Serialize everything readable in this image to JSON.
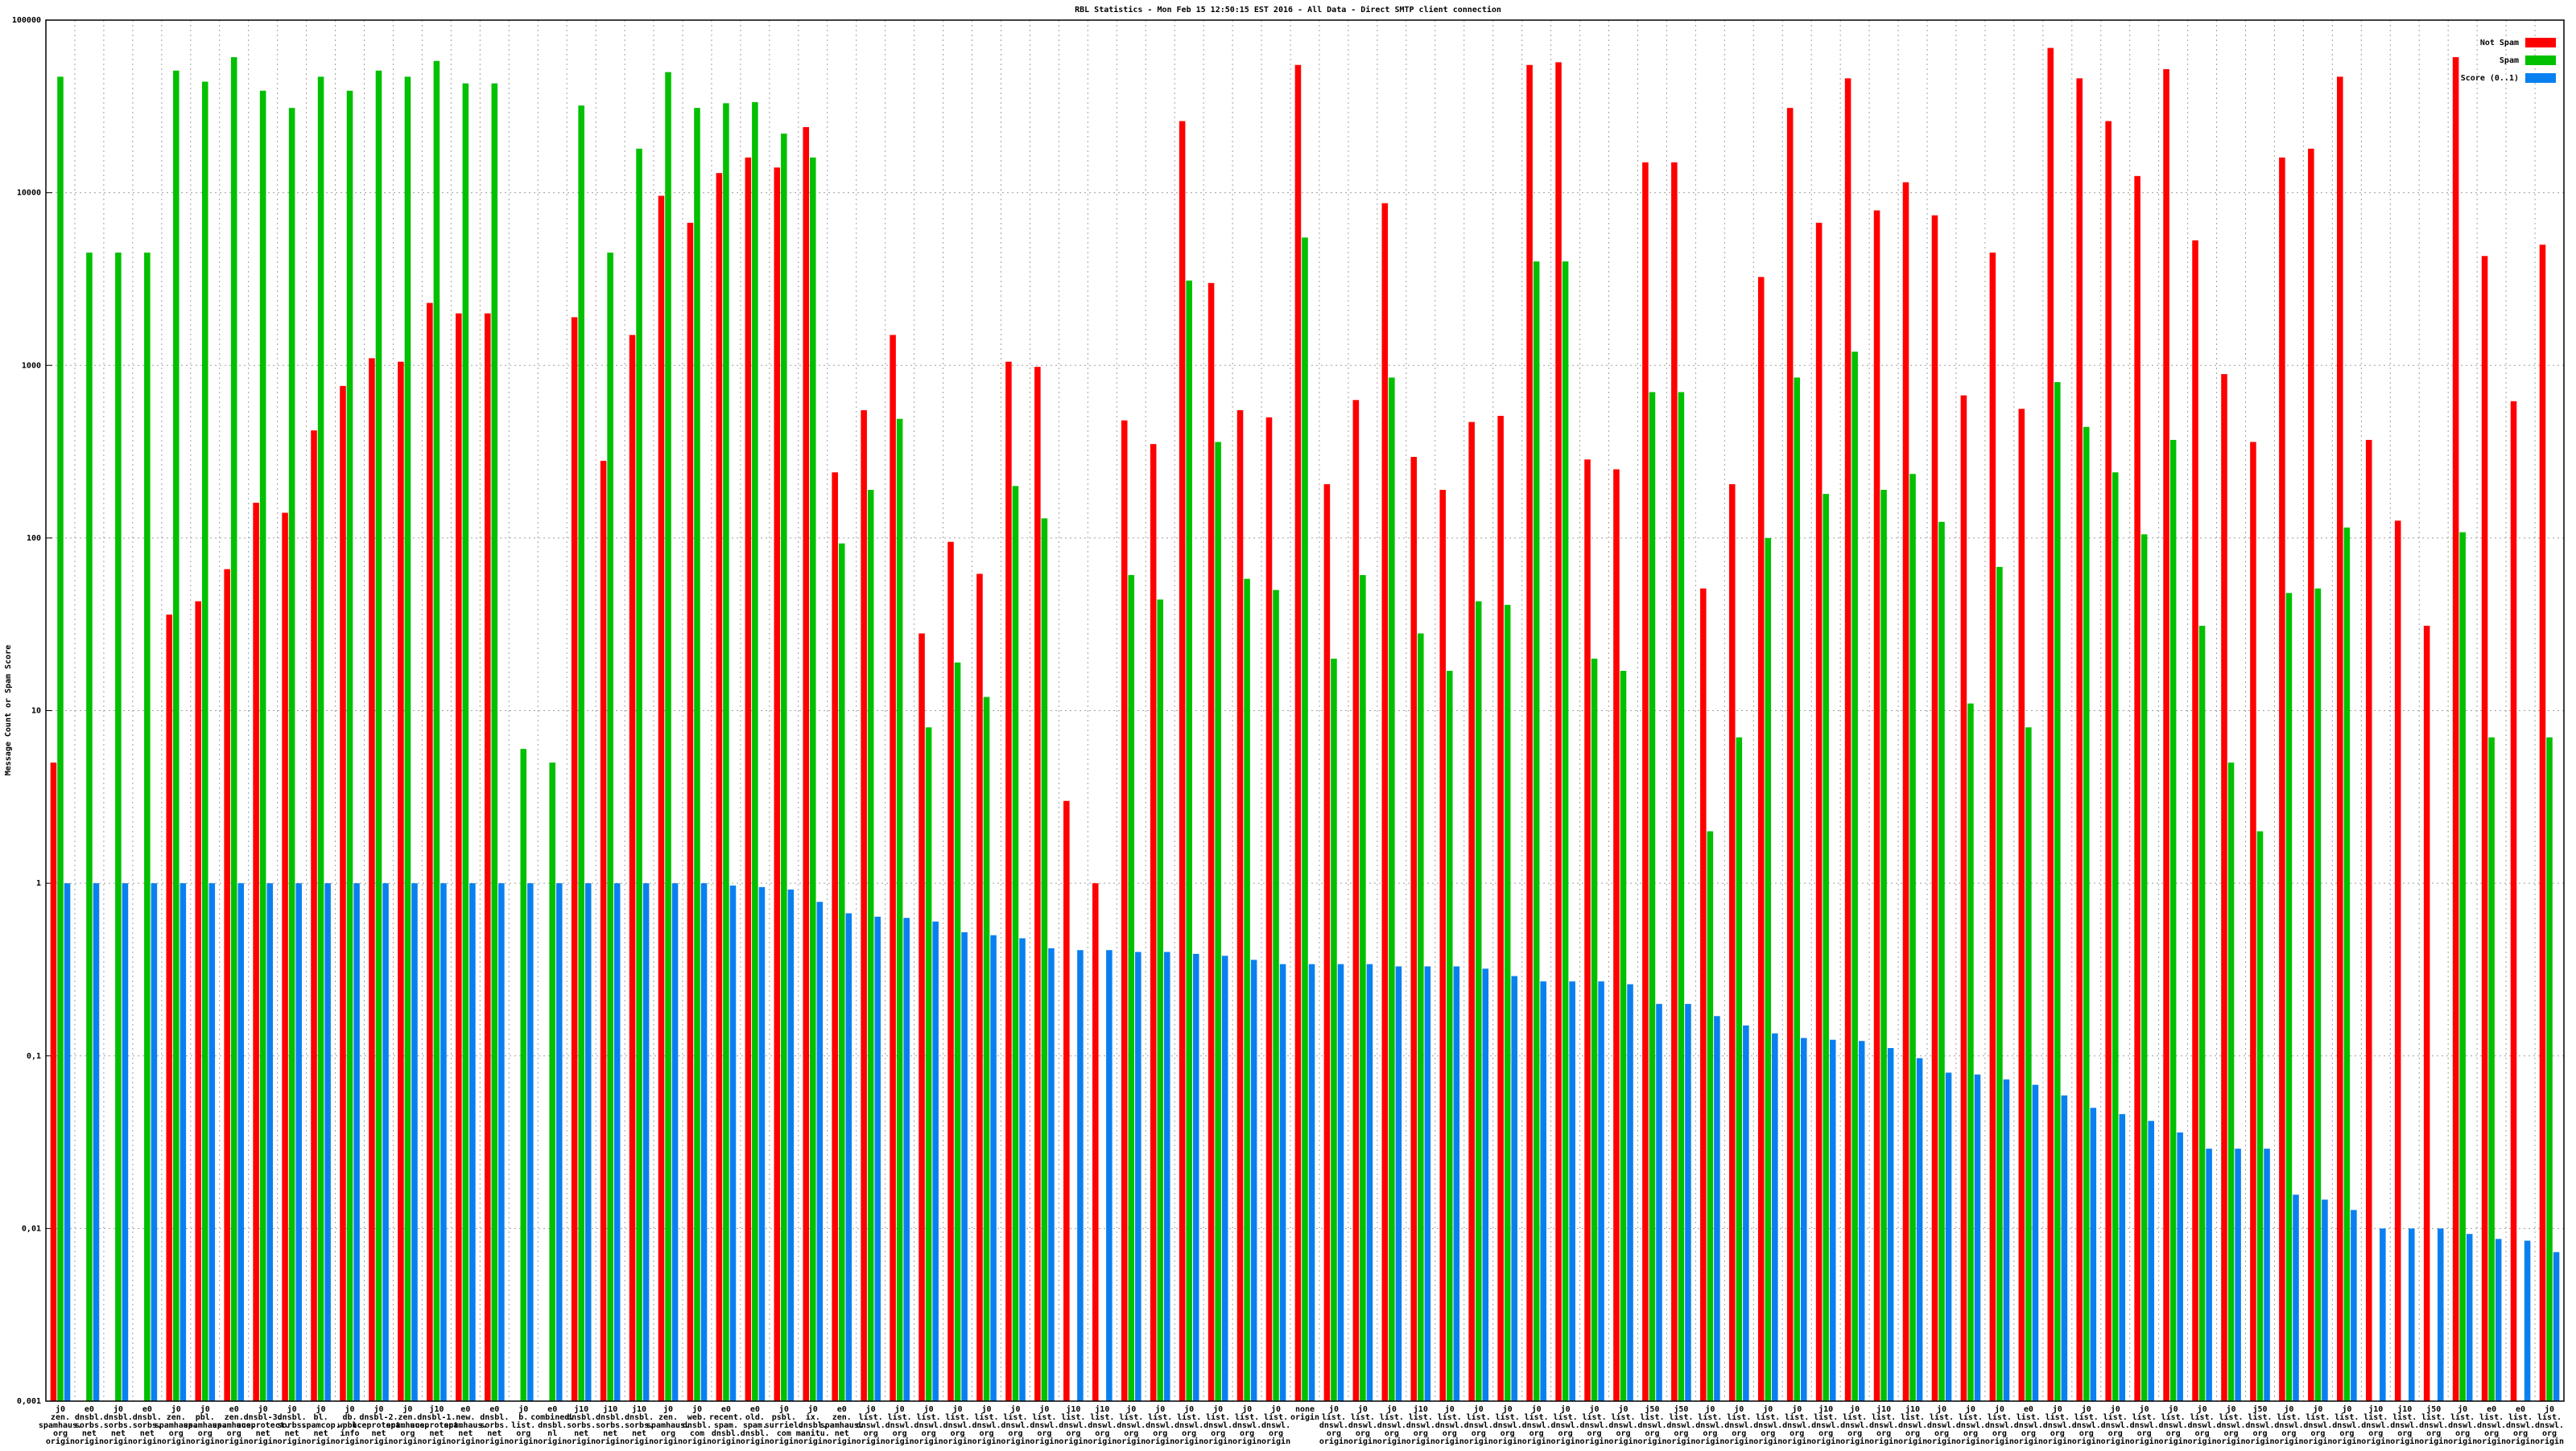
{
  "chart_data": {
    "type": "bar",
    "title": "RBL Statistics - Mon Feb 15 12:50:15 EST 2016 - All Data - Direct SMTP client connection",
    "y_label": "Message Count or Spam Score",
    "log_scale": true,
    "grid": true,
    "legend": "upper right",
    "ylim": [
      0.001,
      100000
    ],
    "yticks": [
      {
        "value": 0.001,
        "label": "0,001"
      },
      {
        "value": 0.01,
        "label": "0,01"
      },
      {
        "value": 0.1,
        "label": "0,1"
      },
      1,
      10,
      100,
      1000,
      10000,
      100000
    ],
    "categories": [
      [
        "j0",
        "zen.",
        "spamhaus.",
        "org",
        "origin"
      ],
      [
        "e0",
        "dnsbl.",
        "sorbs.",
        "net",
        "origin"
      ],
      [
        "j0",
        "dnsbl.",
        "sorbs.",
        "net",
        "origin"
      ],
      [
        "e0",
        "dnsbl.",
        "sorbs.",
        "net",
        "origin"
      ],
      [
        "j0",
        "zen.",
        "spamhaus.",
        "org",
        "origin"
      ],
      [
        "j0",
        "pbl.",
        "spamhaus.",
        "org",
        "origin"
      ],
      [
        "e0",
        "zen.",
        "spamhaus.",
        "org",
        "origin"
      ],
      [
        "j0",
        "dnsbl-3.",
        "uceprotect.",
        "net",
        "origin"
      ],
      [
        "j0",
        "dnsbl.",
        "sorbs.",
        "net",
        "origin"
      ],
      [
        "j0",
        "bl.",
        "spamcop.",
        "net",
        "origin"
      ],
      [
        "j0",
        "db.",
        "wpbl.",
        "info",
        "origin"
      ],
      [
        "j0",
        "dnsbl-2.",
        "uceprotect.",
        "net",
        "origin"
      ],
      [
        "j0",
        "zen.",
        "spamhaus.",
        "org",
        "origin"
      ],
      [
        "j10",
        "dnsbl-1.",
        "uceprotect.",
        "net",
        "origin"
      ],
      [
        "e0",
        "new.",
        "spamhaus.",
        "net",
        "origin"
      ],
      [
        "e0",
        "dnsbl.",
        "sorbs.",
        "net",
        "origin"
      ],
      [
        "j0",
        "b.",
        "list.",
        "org",
        "origin"
      ],
      [
        "e0",
        "combined.",
        "dnsbl.",
        "nl",
        "origin"
      ],
      [
        "j10",
        "dnsbl.",
        "sorbs.",
        "net",
        "origin"
      ],
      [
        "j10",
        "dnsbl.",
        "sorbs.",
        "net",
        "origin"
      ],
      [
        "j10",
        "dnsbl.",
        "sorbs.",
        "net",
        "origin"
      ],
      [
        "j0",
        "zen.",
        "spamhaus.",
        "org",
        "origin"
      ],
      [
        "j0",
        "web.",
        "dnsbl.",
        "com",
        "origin"
      ],
      [
        "e0",
        "recent.",
        "spam.",
        "dnsbl.",
        "origin"
      ],
      [
        "e0",
        "old.",
        "spam.",
        "dnsbl.",
        "origin"
      ],
      [
        "j0",
        "psbl.",
        "surriel.",
        "com",
        "origin"
      ],
      [
        "j0",
        "ix.",
        "dnsbl.",
        "manitu.",
        "origin"
      ],
      [
        "e0",
        "zen.",
        "spamhaus.",
        "net",
        "origin"
      ],
      [
        "j0",
        "list.",
        "dnswl.",
        "org",
        "origin"
      ],
      [
        "j0",
        "list.",
        "dnswl.",
        "org",
        "origin"
      ],
      [
        "j0",
        "list.",
        "dnswl.",
        "org",
        "origin"
      ],
      [
        "j0",
        "list.",
        "dnswl.",
        "org",
        "origin"
      ],
      [
        "j0",
        "list.",
        "dnswl.",
        "org",
        "origin"
      ],
      [
        "j0",
        "list.",
        "dnswl.",
        "org",
        "origin"
      ],
      [
        "j0",
        "list.",
        "dnswl.",
        "org",
        "origin"
      ],
      [
        "j10",
        "list.",
        "dnswl.",
        "org",
        "origin"
      ],
      [
        "j10",
        "list.",
        "dnswl.",
        "org",
        "origin"
      ],
      [
        "j0",
        "list.",
        "dnswl.",
        "org",
        "origin"
      ],
      [
        "j0",
        "list.",
        "dnswl.",
        "org",
        "origin"
      ],
      [
        "j0",
        "list.",
        "dnswl.",
        "org",
        "origin"
      ],
      [
        "j0",
        "list.",
        "dnswl.",
        "org",
        "origin"
      ],
      [
        "j0",
        "list.",
        "dnswl.",
        "org",
        "origin"
      ],
      [
        "j0",
        "list.",
        "dnswl.",
        "org",
        "origin"
      ],
      [
        "none",
        "origin"
      ],
      [
        "j0",
        "list.",
        "dnswl.",
        "org",
        "origin"
      ],
      [
        "j0",
        "list.",
        "dnswl.",
        "org",
        "origin"
      ],
      [
        "j0",
        "list.",
        "dnswl.",
        "org",
        "origin"
      ],
      [
        "j10",
        "list.",
        "dnswl.",
        "org",
        "origin"
      ],
      [
        "j0",
        "list.",
        "dnswl.",
        "org",
        "origin"
      ],
      [
        "j0",
        "list.",
        "dnswl.",
        "org",
        "origin"
      ],
      [
        "j0",
        "list.",
        "dnswl.",
        "org",
        "origin"
      ],
      [
        "j0",
        "list.",
        "dnswl.",
        "org",
        "origin"
      ],
      [
        "j0",
        "list.",
        "dnswl.",
        "org",
        "origin"
      ],
      [
        "j0",
        "list.",
        "dnswl.",
        "org",
        "origin"
      ],
      [
        "j0",
        "list.",
        "dnswl.",
        "org",
        "origin"
      ],
      [
        "j50",
        "list.",
        "dnswl.",
        "org",
        "origin"
      ],
      [
        "j50",
        "list.",
        "dnswl.",
        "org",
        "origin"
      ],
      [
        "j0",
        "list.",
        "dnswl.",
        "org",
        "origin"
      ],
      [
        "j0",
        "list.",
        "dnswl.",
        "org",
        "origin"
      ],
      [
        "j0",
        "list.",
        "dnswl.",
        "org",
        "origin"
      ],
      [
        "j0",
        "list.",
        "dnswl.",
        "org",
        "origin"
      ],
      [
        "j10",
        "list.",
        "dnswl.",
        "org",
        "origin"
      ],
      [
        "j0",
        "list.",
        "dnswl.",
        "org",
        "origin"
      ],
      [
        "j10",
        "list.",
        "dnswl.",
        "org",
        "origin"
      ],
      [
        "j10",
        "list.",
        "dnswl.",
        "org",
        "origin"
      ],
      [
        "j0",
        "list.",
        "dnswl.",
        "org",
        "origin"
      ],
      [
        "j0",
        "list.",
        "dnswl.",
        "org",
        "origin"
      ],
      [
        "j0",
        "list.",
        "dnswl.",
        "org",
        "origin"
      ],
      [
        "e0",
        "list.",
        "dnswl.",
        "org",
        "origin"
      ],
      [
        "j0",
        "list.",
        "dnswl.",
        "org",
        "origin"
      ],
      [
        "j0",
        "list.",
        "dnswl.",
        "org",
        "origin"
      ],
      [
        "j0",
        "list.",
        "dnswl.",
        "org",
        "origin"
      ],
      [
        "j0",
        "list.",
        "dnswl.",
        "org",
        "origin"
      ],
      [
        "j0",
        "list.",
        "dnswl.",
        "org",
        "origin"
      ],
      [
        "j0",
        "list.",
        "dnswl.",
        "org",
        "origin"
      ],
      [
        "j0",
        "list.",
        "dnswl.",
        "org",
        "origin"
      ],
      [
        "j50",
        "list.",
        "dnswl.",
        "org",
        "origin"
      ],
      [
        "j0",
        "list.",
        "dnswl.",
        "org",
        "origin"
      ],
      [
        "j0",
        "list.",
        "dnswl.",
        "org",
        "origin"
      ],
      [
        "j0",
        "list.",
        "dnswl.",
        "org",
        "origin"
      ],
      [
        "j10",
        "list.",
        "dnswl.",
        "org",
        "origin"
      ],
      [
        "j10",
        "list.",
        "dnswl.",
        "org",
        "origin"
      ],
      [
        "j50",
        "list.",
        "dnswl.",
        "org",
        "origin"
      ],
      [
        "j0",
        "list.",
        "dnswl.",
        "org",
        "origin"
      ],
      [
        "e0",
        "list.",
        "dnswl.",
        "org",
        "origin"
      ],
      [
        "e0",
        "list.",
        "dnswl.",
        "org",
        "origin"
      ],
      [
        "j0",
        "list.",
        "dnswl.",
        "org",
        "origin"
      ]
    ],
    "series": [
      {
        "name": "Not Spam",
        "color": "#ff0000",
        "values": [
          5,
          null,
          null,
          null,
          36,
          43,
          66,
          160,
          140,
          420,
          760,
          1100,
          1050,
          2300,
          2000,
          2000,
          null,
          null,
          1900,
          280,
          1500,
          9600,
          6700,
          13000,
          16000,
          14000,
          24000,
          240,
          550,
          1500,
          28,
          95,
          62,
          1050,
          980,
          3,
          1,
          480,
          350,
          26000,
          3000,
          550,
          500,
          55000,
          205,
          630,
          8700,
          295,
          190,
          470,
          510,
          55000,
          57000,
          285,
          250,
          15000,
          15000,
          51,
          205,
          3250,
          31000,
          6700,
          46000,
          7900,
          11500,
          7400,
          670,
          4500,
          560,
          69000,
          46000,
          26000,
          12500,
          52000,
          5300,
          890,
          360,
          16000,
          18000,
          47000,
          370,
          126,
          31,
          61000,
          4300,
          620,
          5000
        ]
      },
      {
        "name": "Spam",
        "color": "#00c000",
        "values": [
          47000,
          4500,
          4500,
          4500,
          51000,
          44000,
          61000,
          39000,
          31000,
          47000,
          39000,
          51000,
          47000,
          58000,
          43000,
          43000,
          6,
          5,
          32000,
          4500,
          18000,
          50000,
          31000,
          33000,
          33500,
          22000,
          16000,
          93,
          190,
          490,
          8,
          19,
          12,
          200,
          130,
          null,
          null,
          61,
          44,
          3100,
          360,
          58,
          50,
          5500,
          20,
          61,
          850,
          28,
          17,
          43,
          41,
          4000,
          4000,
          20,
          17,
          700,
          700,
          2,
          7,
          100,
          850,
          180,
          1200,
          190,
          235,
          124,
          11,
          68,
          8,
          800,
          440,
          240,
          105,
          370,
          31,
          5,
          2,
          48,
          51,
          115,
          null,
          null,
          null,
          108,
          7,
          null,
          7
        ]
      },
      {
        "name": "Score (0..1)",
        "color": "#0a80f0",
        "values": [
          1,
          1,
          1,
          1,
          1,
          1,
          1,
          1,
          1,
          1,
          1,
          1,
          1,
          1,
          1,
          1,
          1,
          1,
          1,
          1,
          1,
          1,
          1,
          0.97,
          0.95,
          0.92,
          0.78,
          0.67,
          0.64,
          0.63,
          0.6,
          0.52,
          0.5,
          0.48,
          0.42,
          0.41,
          0.41,
          0.4,
          0.4,
          0.39,
          0.38,
          0.36,
          0.34,
          0.34,
          0.34,
          0.34,
          0.33,
          0.33,
          0.33,
          0.32,
          0.29,
          0.27,
          0.27,
          0.27,
          0.26,
          0.2,
          0.2,
          0.17,
          0.15,
          0.135,
          0.127,
          0.124,
          0.122,
          0.111,
          0.097,
          0.08,
          0.078,
          0.073,
          0.068,
          0.059,
          0.05,
          0.046,
          0.042,
          0.036,
          0.029,
          0.029,
          0.029,
          0.0157,
          0.0147,
          0.0128,
          0.01,
          0.01,
          0.01,
          0.0093,
          0.0087,
          0.0085,
          0.0073
        ]
      }
    ]
  }
}
